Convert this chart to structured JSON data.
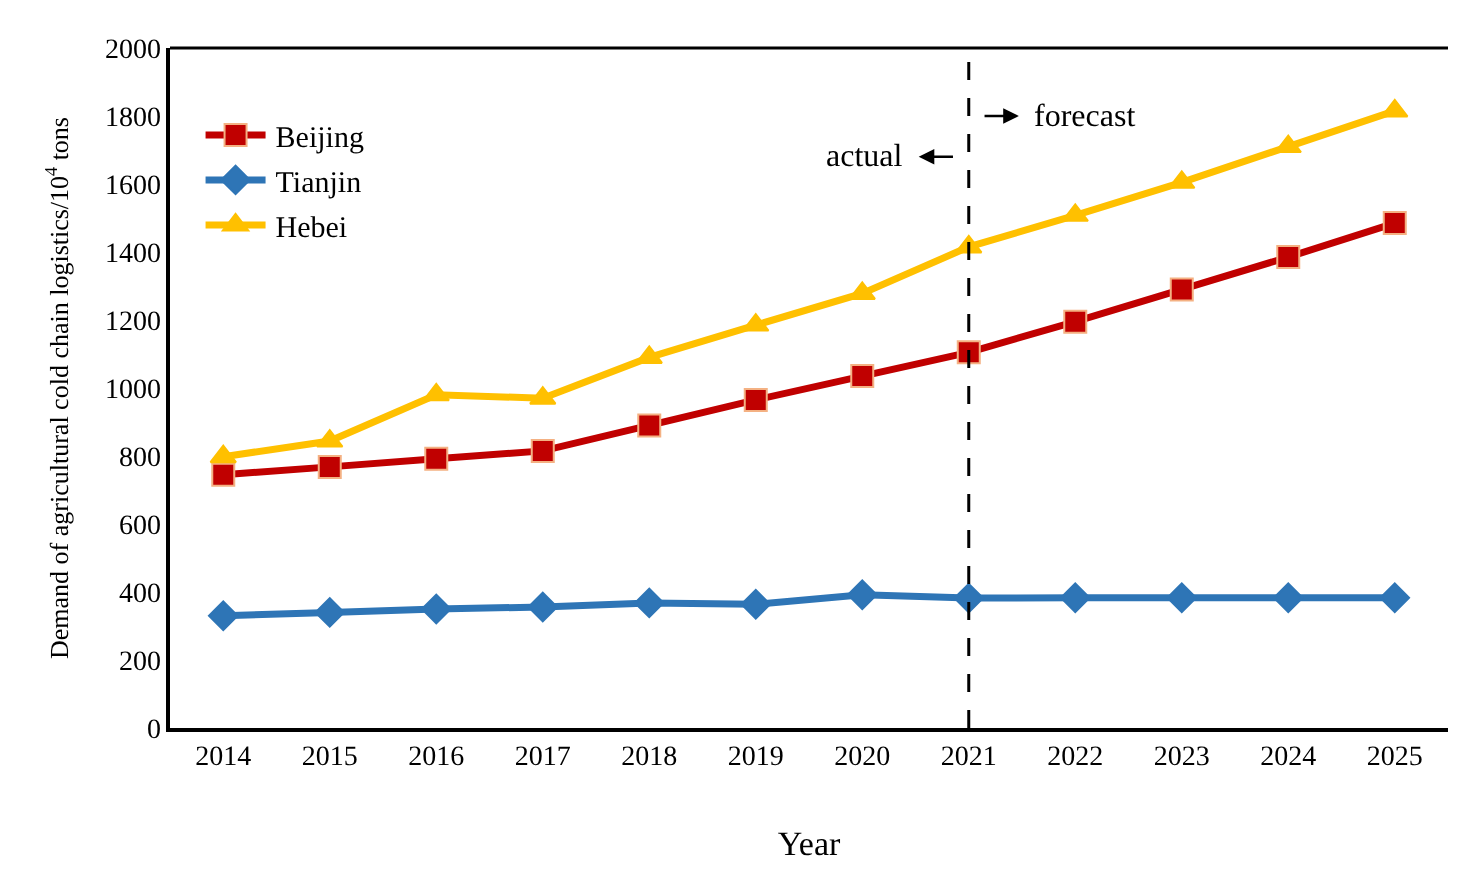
{
  "chart_data": {
    "type": "line",
    "xlabel": "Year",
    "ylabel": "Demand of agricultural cold chain logistics/10$^{4}$ tons",
    "categories": [
      "2014",
      "2015",
      "2016",
      "2017",
      "2018",
      "2019",
      "2020",
      "2021",
      "2022",
      "2023",
      "2024",
      "2025"
    ],
    "series": [
      {
        "name": "Beijing",
        "color": "#c00000",
        "marker": "square",
        "values": [
          745,
          768,
          792,
          815,
          890,
          965,
          1035,
          1105,
          1195,
          1290,
          1385,
          1485
        ]
      },
      {
        "name": "Tianjin",
        "color": "#2e75b6",
        "marker": "diamond",
        "values": [
          330,
          340,
          350,
          356,
          368,
          364,
          392,
          382,
          383,
          383,
          383,
          383
        ]
      },
      {
        "name": "Hebei",
        "color": "#ffc000",
        "marker": "triangle",
        "values": [
          798,
          844,
          980,
          970,
          1090,
          1185,
          1278,
          1415,
          1508,
          1605,
          1710,
          1815
        ]
      }
    ],
    "ylim": [
      0,
      2000
    ],
    "yticks": [
      0,
      200,
      400,
      600,
      800,
      1000,
      1200,
      1400,
      1600,
      1800,
      2000
    ],
    "grid": false,
    "legend": "top left",
    "ref_lines": [
      {
        "axis": "x",
        "value": "2021",
        "color": "#000000",
        "line_style": "dashed"
      }
    ],
    "annotations": [
      "actual",
      "forecast"
    ]
  }
}
